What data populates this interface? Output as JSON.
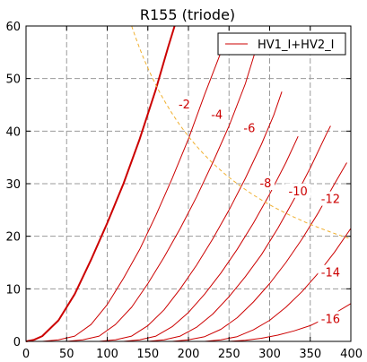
{
  "chart_data": {
    "type": "line",
    "title": "R155 (triode)",
    "xlabel": "",
    "ylabel": "",
    "xlim": [
      0,
      400
    ],
    "ylim": [
      0,
      60
    ],
    "x_ticks": [
      0,
      50,
      100,
      150,
      200,
      250,
      300,
      350,
      400
    ],
    "y_ticks": [
      0,
      10,
      20,
      30,
      40,
      50,
      60
    ],
    "grid": true,
    "legend": {
      "position": "top-right",
      "entries": [
        "HV1_I+HV2_I"
      ]
    },
    "colors": {
      "curve": "#cc0000",
      "dissipation": "#f0b030",
      "grid": "#9a9a9a"
    },
    "series": [
      {
        "label": "",
        "bold": true,
        "points": [
          [
            0,
            0
          ],
          [
            10,
            0.3
          ],
          [
            20,
            1
          ],
          [
            40,
            4
          ],
          [
            60,
            9
          ],
          [
            80,
            15.5
          ],
          [
            100,
            22.5
          ],
          [
            120,
            30
          ],
          [
            140,
            38.5
          ],
          [
            160,
            48
          ],
          [
            175,
            56
          ],
          [
            183,
            60
          ]
        ]
      },
      {
        "label": "-2",
        "points": [
          [
            20,
            0
          ],
          [
            40,
            0.3
          ],
          [
            60,
            1
          ],
          [
            80,
            3.2
          ],
          [
            100,
            7
          ],
          [
            120,
            12
          ],
          [
            140,
            17.5
          ],
          [
            160,
            24
          ],
          [
            180,
            31
          ],
          [
            200,
            38.5
          ],
          [
            220,
            47
          ],
          [
            240,
            55
          ],
          [
            248,
            58.5
          ]
        ]
      },
      {
        "label": "-4",
        "points": [
          [
            50,
            0
          ],
          [
            70,
            0.3
          ],
          [
            90,
            1
          ],
          [
            110,
            3.2
          ],
          [
            130,
            6.5
          ],
          [
            150,
            11
          ],
          [
            170,
            16
          ],
          [
            190,
            21.5
          ],
          [
            210,
            27.5
          ],
          [
            230,
            34
          ],
          [
            250,
            41
          ],
          [
            270,
            49
          ],
          [
            283,
            55.5
          ]
        ]
      },
      {
        "label": "-6",
        "points": [
          [
            90,
            0
          ],
          [
            110,
            0.3
          ],
          [
            130,
            1
          ],
          [
            150,
            3
          ],
          [
            170,
            6
          ],
          [
            190,
            10
          ],
          [
            210,
            14.5
          ],
          [
            230,
            19.5
          ],
          [
            250,
            25
          ],
          [
            270,
            31
          ],
          [
            290,
            37.5
          ],
          [
            305,
            43
          ],
          [
            315,
            47.5
          ]
        ]
      },
      {
        "label": "-8",
        "points": [
          [
            120,
            0
          ],
          [
            140,
            0.3
          ],
          [
            160,
            1
          ],
          [
            180,
            2.8
          ],
          [
            200,
            5.5
          ],
          [
            220,
            9
          ],
          [
            240,
            13
          ],
          [
            260,
            17.5
          ],
          [
            280,
            22.5
          ],
          [
            300,
            28
          ],
          [
            320,
            34
          ],
          [
            335,
            39
          ]
        ]
      },
      {
        "label": "-10",
        "points": [
          [
            150,
            0
          ],
          [
            170,
            0.3
          ],
          [
            190,
            1
          ],
          [
            210,
            2.7
          ],
          [
            230,
            5.2
          ],
          [
            250,
            8.5
          ],
          [
            270,
            12.3
          ],
          [
            290,
            16.5
          ],
          [
            310,
            21.5
          ],
          [
            330,
            27
          ],
          [
            350,
            33
          ],
          [
            370,
            39.5
          ],
          [
            375,
            41
          ]
        ]
      },
      {
        "label": "-12",
        "points": [
          [
            180,
            0
          ],
          [
            200,
            0.3
          ],
          [
            220,
            0.9
          ],
          [
            240,
            2.3
          ],
          [
            260,
            4.5
          ],
          [
            280,
            7.5
          ],
          [
            300,
            11
          ],
          [
            320,
            15
          ],
          [
            340,
            19.5
          ],
          [
            360,
            24.5
          ],
          [
            380,
            30
          ],
          [
            395,
            34
          ]
        ]
      },
      {
        "label": "-14",
        "points": [
          [
            220,
            0
          ],
          [
            240,
            0.3
          ],
          [
            260,
            0.9
          ],
          [
            280,
            2.2
          ],
          [
            300,
            4
          ],
          [
            320,
            6.5
          ],
          [
            340,
            9.5
          ],
          [
            360,
            13
          ],
          [
            380,
            17
          ],
          [
            400,
            21.5
          ]
        ]
      },
      {
        "label": "-16",
        "points": [
          [
            250,
            0
          ],
          [
            270,
            0.2
          ],
          [
            290,
            0.6
          ],
          [
            310,
            1.2
          ],
          [
            330,
            2
          ],
          [
            350,
            3
          ],
          [
            370,
            4.5
          ],
          [
            385,
            5.8
          ],
          [
            400,
            7.2
          ]
        ]
      }
    ],
    "dissipation_curve": {
      "watts": 7.8,
      "x_range": [
        130,
        400
      ]
    },
    "curve_labels": [
      {
        "text": "-2",
        "x": 195,
        "y": 45
      },
      {
        "text": "-4",
        "x": 235,
        "y": 43
      },
      {
        "text": "-6",
        "x": 275,
        "y": 40.5
      },
      {
        "text": "-8",
        "x": 295,
        "y": 30
      },
      {
        "text": "-10",
        "x": 335,
        "y": 28.5
      },
      {
        "text": "-12",
        "x": 375,
        "y": 27
      },
      {
        "text": "-14",
        "x": 375,
        "y": 13
      },
      {
        "text": "-16",
        "x": 375,
        "y": 4.2
      }
    ]
  }
}
